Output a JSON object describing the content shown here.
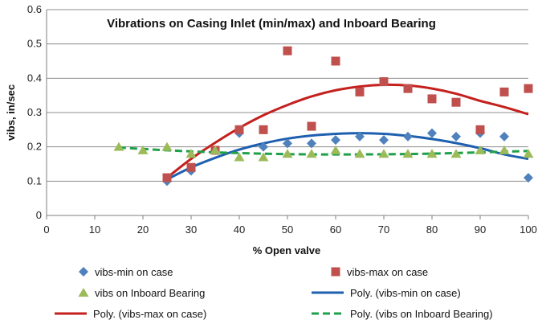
{
  "chart_data": {
    "type": "scatter",
    "title": "Vibrations on Casing Inlet (min/max) and Inboard Bearing",
    "xlabel": "%  Open valve",
    "ylabel": "vibs, in/sec",
    "xlim": [
      0,
      100
    ],
    "ylim": [
      0,
      0.6
    ],
    "xticks": [
      0,
      10,
      20,
      30,
      40,
      50,
      60,
      70,
      80,
      90,
      100
    ],
    "yticks": [
      0,
      0.1,
      0.2,
      0.3,
      0.4,
      0.5,
      0.6
    ],
    "grid": "horizontal",
    "legend_position": "bottom",
    "series": [
      {
        "name": "vibs-min on case",
        "kind": "scatter",
        "marker": "diamond",
        "color": "#4F81BD",
        "x": [
          25,
          30,
          35,
          40,
          45,
          50,
          55,
          60,
          65,
          70,
          75,
          80,
          85,
          90,
          95,
          100
        ],
        "y": [
          0.1,
          0.13,
          0.19,
          0.24,
          0.2,
          0.21,
          0.21,
          0.22,
          0.23,
          0.22,
          0.23,
          0.24,
          0.23,
          0.24,
          0.23,
          0.11
        ]
      },
      {
        "name": "vibs-max on case",
        "kind": "scatter",
        "marker": "square",
        "color": "#C0504D",
        "x": [
          25,
          30,
          35,
          40,
          45,
          50,
          55,
          60,
          65,
          70,
          75,
          80,
          85,
          90,
          95,
          100
        ],
        "y": [
          0.11,
          0.14,
          0.19,
          0.25,
          0.25,
          0.48,
          0.26,
          0.45,
          0.36,
          0.39,
          0.37,
          0.34,
          0.33,
          0.25,
          0.36,
          0.37
        ]
      },
      {
        "name": "vibs on Inboard Bearing",
        "kind": "scatter",
        "marker": "triangle",
        "color": "#9BBB59",
        "x": [
          15,
          20,
          25,
          30,
          35,
          40,
          45,
          50,
          55,
          60,
          65,
          70,
          75,
          80,
          85,
          90,
          95,
          100
        ],
        "y": [
          0.2,
          0.19,
          0.2,
          0.18,
          0.19,
          0.17,
          0.17,
          0.18,
          0.18,
          0.19,
          0.18,
          0.18,
          0.18,
          0.18,
          0.18,
          0.19,
          0.19,
          0.18
        ]
      },
      {
        "name": "Poly. (vibs-min on case)",
        "kind": "trend",
        "dash": "solid",
        "color": "#1F5FAF",
        "x": [
          25,
          30,
          35,
          40,
          45,
          50,
          55,
          60,
          65,
          70,
          75,
          80,
          85,
          90,
          95,
          100
        ],
        "y": [
          0.105,
          0.14,
          0.168,
          0.192,
          0.21,
          0.224,
          0.233,
          0.238,
          0.24,
          0.238,
          0.232,
          0.223,
          0.211,
          0.196,
          0.178,
          0.165
        ]
      },
      {
        "name": "Poly. (vibs-max on case)",
        "kind": "trend",
        "dash": "solid",
        "color": "#C4201E",
        "x": [
          25,
          30,
          35,
          40,
          45,
          50,
          55,
          60,
          65,
          70,
          75,
          80,
          85,
          90,
          95,
          100
        ],
        "y": [
          0.11,
          0.165,
          0.212,
          0.255,
          0.292,
          0.322,
          0.347,
          0.365,
          0.376,
          0.381,
          0.379,
          0.37,
          0.355,
          0.334,
          0.316,
          0.295
        ]
      },
      {
        "name": "Poly. (vibs on Inboard Bearing)",
        "kind": "trend",
        "dash": "dashed",
        "color": "#1FA04A",
        "x": [
          15,
          25,
          35,
          45,
          55,
          65,
          75,
          85,
          95,
          100
        ],
        "y": [
          0.198,
          0.19,
          0.184,
          0.18,
          0.178,
          0.178,
          0.179,
          0.182,
          0.186,
          0.188
        ]
      }
    ]
  }
}
